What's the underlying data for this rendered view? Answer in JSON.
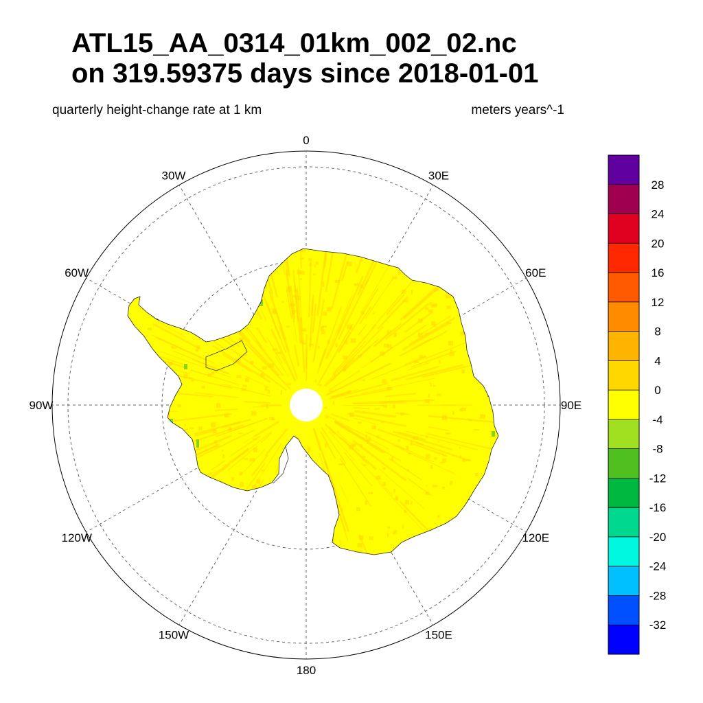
{
  "title": {
    "line1": "ATL15_AA_0314_01km_002_02.nc",
    "line2": "on 319.59375 days since 2018-01-01"
  },
  "subtitle": {
    "left": "quarterly height-change rate at 1 km",
    "right": "meters years^-1"
  },
  "map": {
    "projection": "south-polar-stereographic",
    "longitude_labels": [
      {
        "lon": 0,
        "text": "0"
      },
      {
        "lon": 30,
        "text": "30E"
      },
      {
        "lon": 60,
        "text": "60E"
      },
      {
        "lon": 90,
        "text": "90E"
      },
      {
        "lon": 120,
        "text": "120E"
      },
      {
        "lon": 150,
        "text": "150E"
      },
      {
        "lon": 180,
        "text": "180"
      },
      {
        "lon": -150,
        "text": "150W"
      },
      {
        "lon": -120,
        "text": "120W"
      },
      {
        "lon": -90,
        "text": "90W"
      },
      {
        "lon": -60,
        "text": "60W"
      },
      {
        "lon": -30,
        "text": "30W"
      }
    ],
    "land_fill": "#ffff00",
    "mottle_color": "#ffd700"
  },
  "colorbar": {
    "colors": [
      "#0000ff",
      "#0050ff",
      "#00c0ff",
      "#00f8e0",
      "#00d890",
      "#00b840",
      "#50c020",
      "#a0e020",
      "#ffff00",
      "#ffd800",
      "#ffb400",
      "#ff8c00",
      "#ff5a00",
      "#ff2800",
      "#e00020",
      "#a00050",
      "#6000a0"
    ],
    "tick_labels": [
      "-32",
      "-28",
      "-24",
      "-20",
      "-16",
      "-12",
      "-8",
      "-4",
      "0",
      "4",
      "8",
      "12",
      "16",
      "20",
      "24",
      "28"
    ]
  }
}
